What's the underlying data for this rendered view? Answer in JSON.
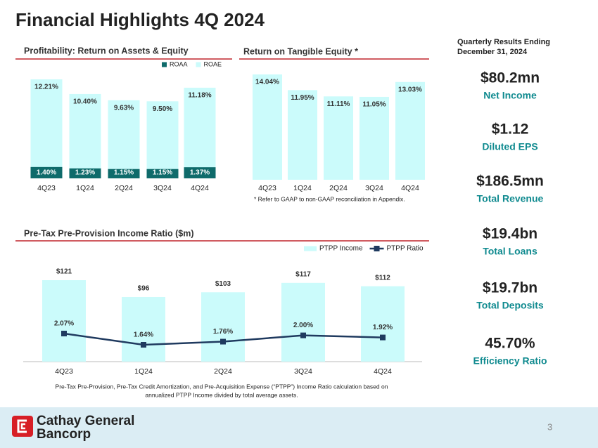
{
  "title": "Financial Highlights 4Q 2024",
  "chart_data": [
    {
      "type": "bar",
      "title": "Profitability: Return on Assets & Equity",
      "categories": [
        "4Q23",
        "1Q24",
        "2Q24",
        "3Q24",
        "4Q24"
      ],
      "series": [
        {
          "name": "ROAA",
          "color": "#0f6b6b",
          "values": [
            1.4,
            1.23,
            1.15,
            1.15,
            1.37
          ],
          "value_labels": [
            "1.40%",
            "1.23%",
            "1.15%",
            "1.15%",
            "1.37%"
          ]
        },
        {
          "name": "ROAE",
          "color": "#cbfbfb",
          "values": [
            12.21,
            10.4,
            9.63,
            9.5,
            11.18
          ],
          "value_labels": [
            "12.21%",
            "10.40%",
            "9.63%",
            "9.50%",
            "11.18%"
          ]
        }
      ]
    },
    {
      "type": "bar",
      "title": "Return on Tangible Equity *",
      "categories": [
        "4Q23",
        "1Q24",
        "2Q24",
        "3Q24",
        "4Q24"
      ],
      "series": [
        {
          "color": "#cbfbfb",
          "values": [
            14.04,
            11.95,
            11.11,
            11.05,
            13.03
          ],
          "value_labels": [
            "14.04%",
            "11.95%",
            "11.11%",
            "11.05%",
            "13.03%"
          ]
        }
      ],
      "footnote": "* Refer to GAAP to non-GAAP reconciliation in Appendix."
    },
    {
      "type": "bar",
      "title": "Pre-Tax Pre-Provision Income Ratio ($m)",
      "categories": [
        "4Q23",
        "1Q24",
        "2Q24",
        "3Q24",
        "4Q24"
      ],
      "series": [
        {
          "name": "PTPP Income",
          "color": "#cbfbfb",
          "values": [
            121,
            96,
            103,
            117,
            112
          ],
          "value_labels": [
            "$121",
            "$96",
            "$103",
            "$117",
            "$112"
          ]
        },
        {
          "name": "PTPP Ratio",
          "type": "line",
          "axis": "y2",
          "color": "#1f3a5f",
          "values": [
            2.07,
            1.64,
            1.76,
            2.0,
            1.92
          ],
          "value_labels": [
            "2.07%",
            "1.64%",
            "1.76%",
            "2.00%",
            "1.92%"
          ]
        }
      ],
      "footnote": [
        "Pre-Tax Pre-Provision, Pre-Tax Credit Amortization, and Pre-Acquisition Expense (“PTPP”) Income Ratio calculation based on",
        "annualized PTPP Income divided by total average assets."
      ]
    }
  ],
  "sidebar": {
    "header": [
      "Quarterly Results Ending",
      "December 31, 2024"
    ],
    "metrics": [
      {
        "value": "$80.2mn",
        "label": "Net Income"
      },
      {
        "value": "$1.12",
        "label": "Diluted EPS"
      },
      {
        "value": "$186.5mn",
        "label": "Total Revenue"
      },
      {
        "value": "$19.4bn",
        "label": "Total Loans"
      },
      {
        "value": "$19.7bn",
        "label": "Total Deposits"
      },
      {
        "value": "45.70%",
        "label": "Efficiency Ratio"
      }
    ]
  },
  "footer": {
    "logo": [
      "Cathay General",
      "Bancorp"
    ],
    "page": "3"
  }
}
